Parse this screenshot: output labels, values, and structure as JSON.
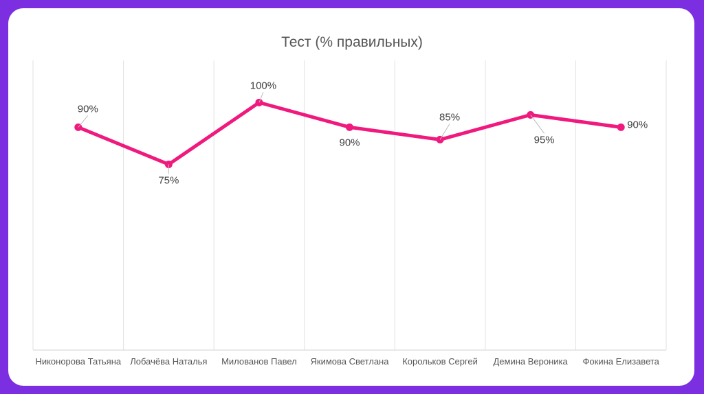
{
  "chart_data": {
    "type": "line",
    "title": "Тест (% правильных)",
    "categories": [
      "Никонорова Татьяна",
      "Лобачёва Наталья",
      "Милованов Павел",
      "Якимова Светлана",
      "Корольков Сергей",
      "Демина Вероника",
      "Фокина Елизавета"
    ],
    "values": [
      90,
      75,
      100,
      90,
      85,
      95,
      90
    ],
    "data_labels": [
      "90%",
      "75%",
      "100%",
      "90%",
      "85%",
      "95%",
      "90%"
    ],
    "xlabel": "",
    "ylabel": "",
    "ylim": [
      0,
      117
    ],
    "grid": "vertical",
    "legend": "none",
    "colors": {
      "series": "#F0197D",
      "background": "#7B2FE0",
      "card": "#FFFFFF"
    }
  }
}
